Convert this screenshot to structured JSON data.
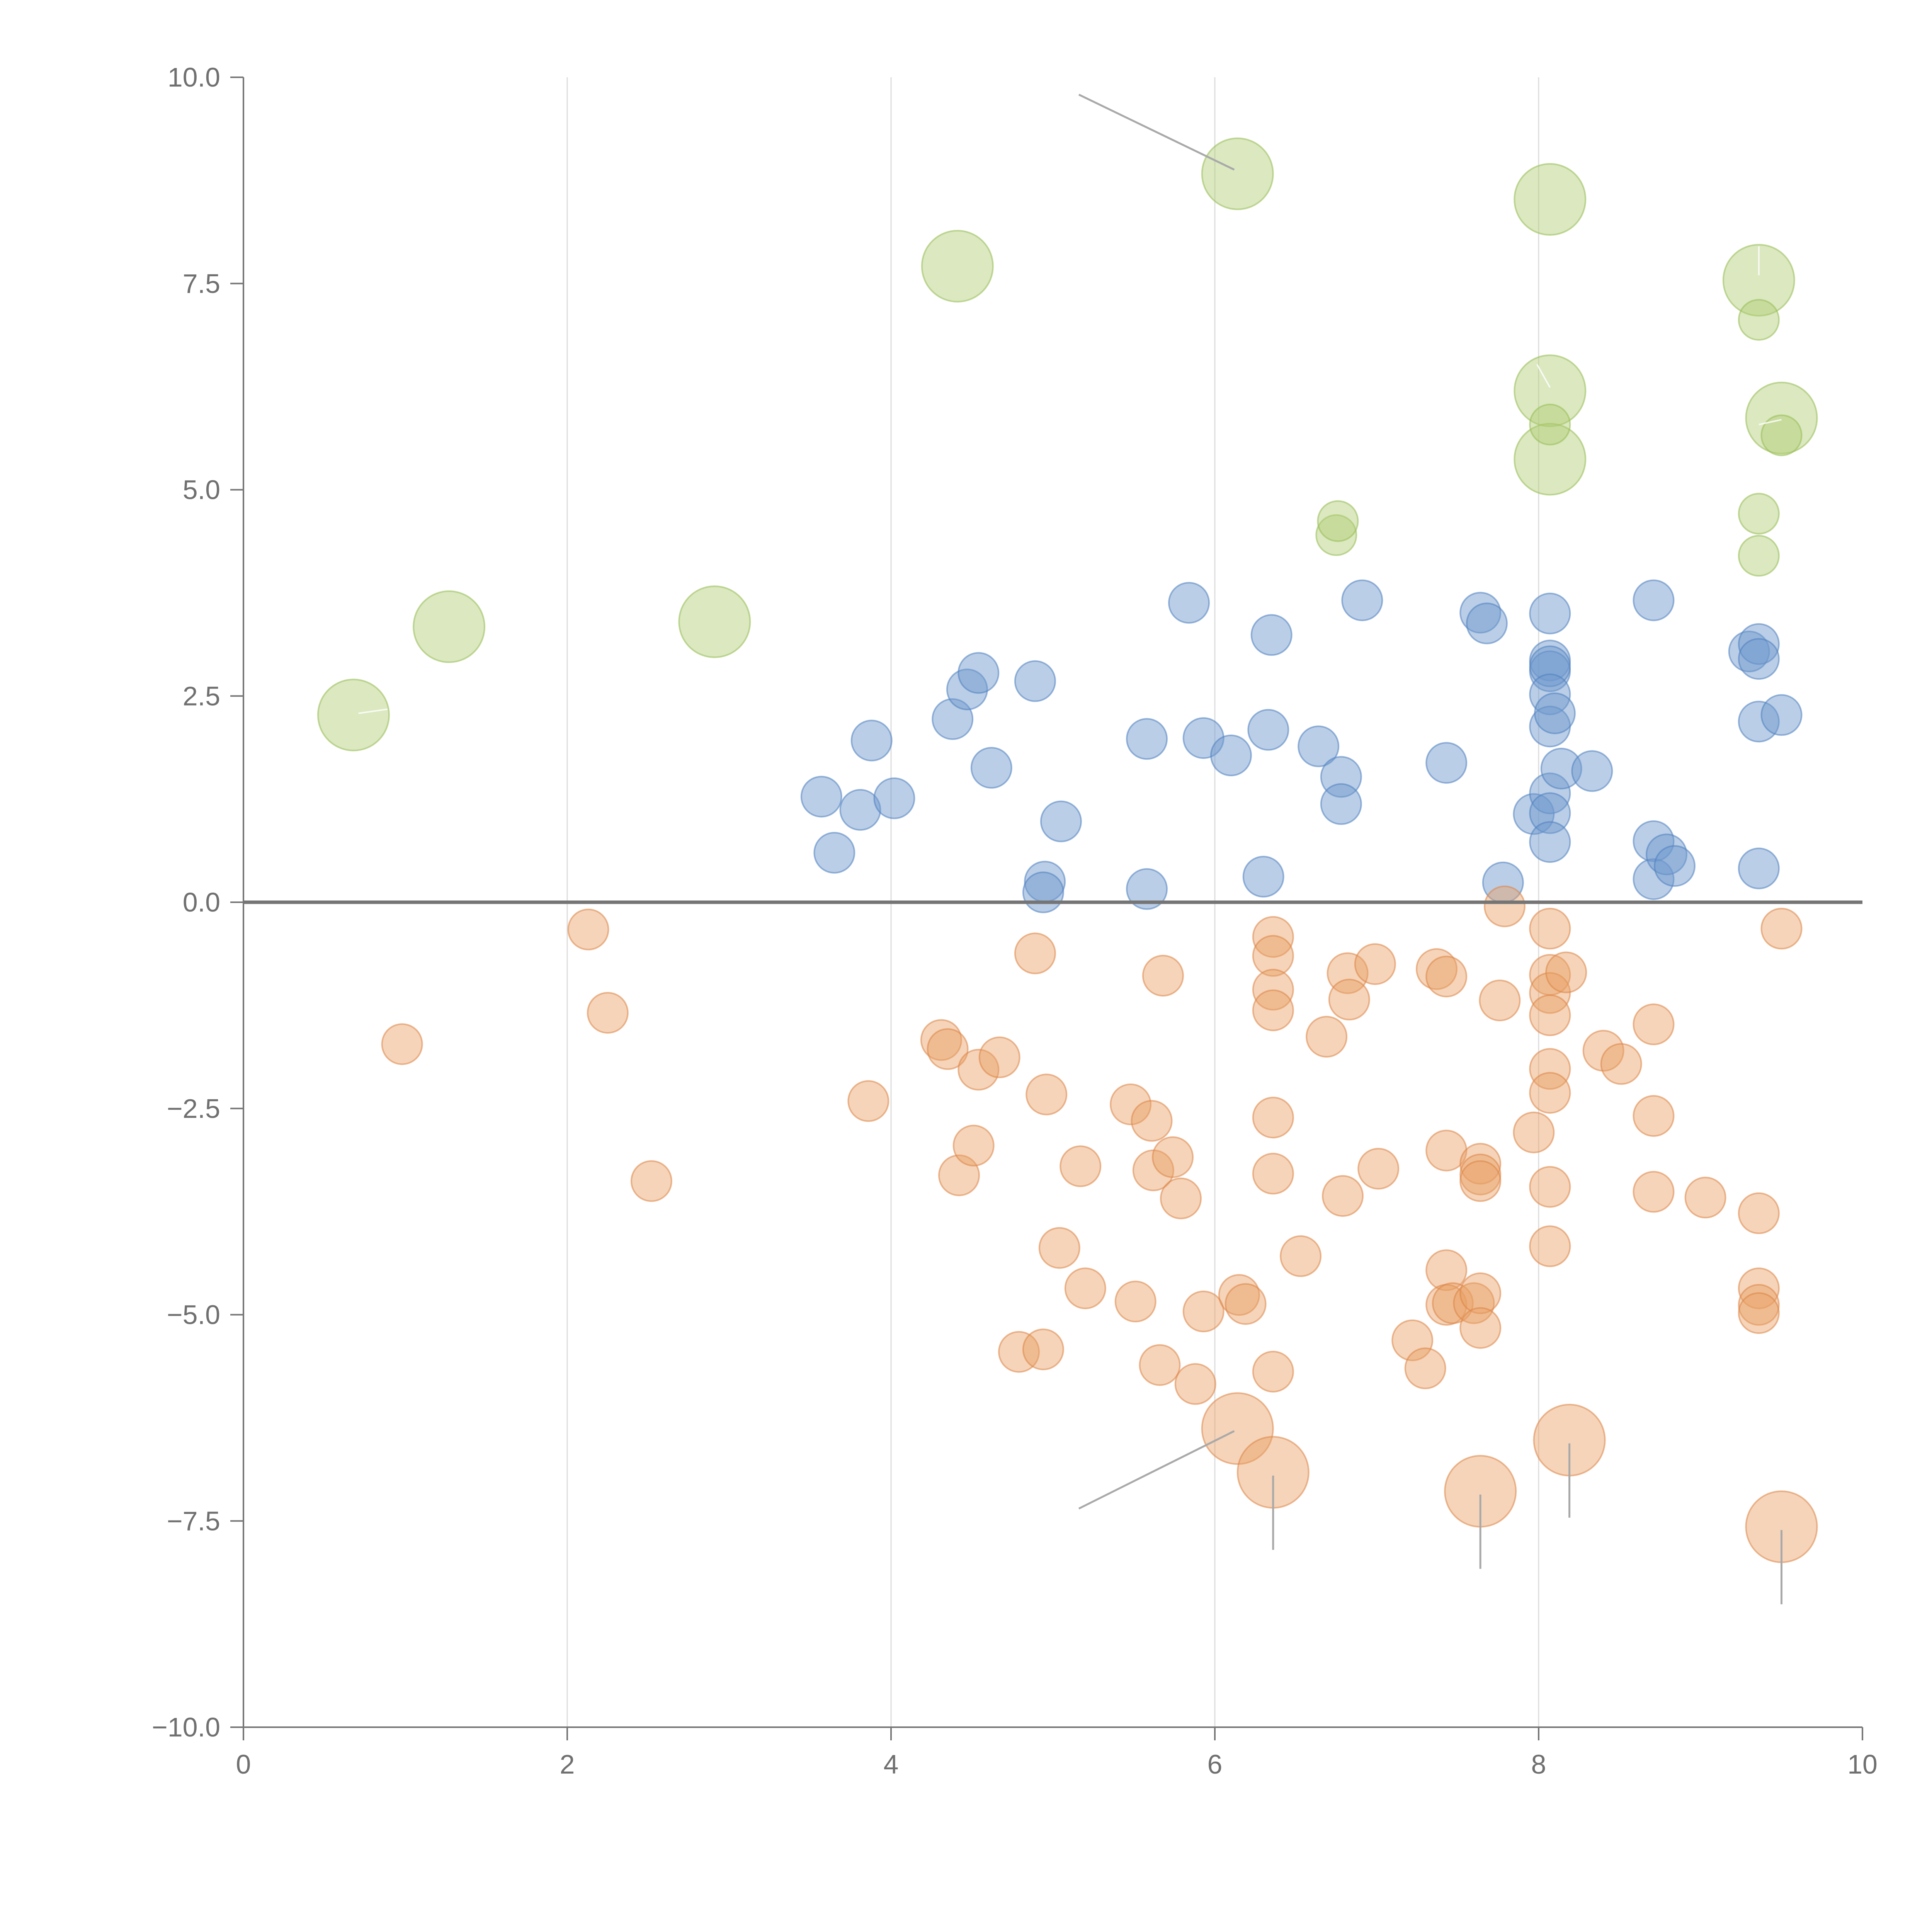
{
  "colors": {
    "positive": "#6f98cc",
    "negative": "#e9a063",
    "highlight": "#afcc73"
  },
  "chart_data": {
    "type": "scatter",
    "title": "",
    "xlabel": "",
    "ylabel": "",
    "xlim": [
      0,
      10
    ],
    "ylim": [
      -10,
      10
    ],
    "x_ticks": [
      0,
      2,
      4,
      6,
      8,
      10
    ],
    "x_tick_labels": [
      "0",
      "2",
      "4",
      "6",
      "8",
      "10"
    ],
    "y_ticks": [
      10,
      7.5,
      5,
      2.5,
      0,
      -2.5,
      -5,
      -7.5,
      -10
    ],
    "y_tick_labels": [
      "10.0",
      "7.5",
      "5.0",
      "2.5",
      "0.0",
      "−2.5",
      "−5.0",
      "−7.5",
      "−10.0"
    ],
    "vertical_grid_at": [
      2,
      4,
      6,
      8
    ],
    "zero_line_y": 0,
    "series": [
      {
        "name": "positive",
        "size": "small",
        "points": [
          [
            3.57,
            1.28
          ],
          [
            3.65,
            0.6
          ],
          [
            3.81,
            1.12
          ],
          [
            3.88,
            1.96
          ],
          [
            4.02,
            1.26
          ],
          [
            4.38,
            2.22
          ],
          [
            4.47,
            2.58
          ],
          [
            4.54,
            2.78
          ],
          [
            4.62,
            1.63
          ],
          [
            4.89,
            2.68
          ],
          [
            4.95,
            0.25
          ],
          [
            4.94,
            0.12
          ],
          [
            5.05,
            0.98
          ],
          [
            5.58,
            1.98
          ],
          [
            5.58,
            0.16
          ],
          [
            5.84,
            3.63
          ],
          [
            5.93,
            1.99
          ],
          [
            6.1,
            1.78
          ],
          [
            6.3,
            0.31
          ],
          [
            6.33,
            2.09
          ],
          [
            6.35,
            3.24
          ],
          [
            6.64,
            1.89
          ],
          [
            6.78,
            1.52
          ],
          [
            6.78,
            1.19
          ],
          [
            6.91,
            3.66
          ],
          [
            7.43,
            1.69
          ],
          [
            7.64,
            3.51
          ],
          [
            7.68,
            3.38
          ],
          [
            7.78,
            0.24
          ],
          [
            7.97,
            1.07
          ],
          [
            8.07,
            3.5
          ],
          [
            8.07,
            2.93
          ],
          [
            8.07,
            2.8
          ],
          [
            8.07,
            2.86
          ],
          [
            8.07,
            2.52
          ],
          [
            8.07,
            2.13
          ],
          [
            8.1,
            2.29
          ],
          [
            8.07,
            1.32
          ],
          [
            8.07,
            1.08
          ],
          [
            8.07,
            0.73
          ],
          [
            8.14,
            1.62
          ],
          [
            8.33,
            1.59
          ],
          [
            8.71,
            3.66
          ],
          [
            8.71,
            0.74
          ],
          [
            8.71,
            0.28
          ],
          [
            8.79,
            0.58
          ],
          [
            8.84,
            0.44
          ],
          [
            9.3,
            3.04
          ],
          [
            9.36,
            3.13
          ],
          [
            9.36,
            2.95
          ],
          [
            9.36,
            2.19
          ],
          [
            9.5,
            2.27
          ],
          [
            9.36,
            0.41
          ]
        ]
      },
      {
        "name": "negative",
        "size": "small",
        "points": [
          [
            0.98,
            -1.72
          ],
          [
            2.13,
            -0.33
          ],
          [
            2.25,
            -1.34
          ],
          [
            2.52,
            -3.38
          ],
          [
            3.86,
            -2.41
          ],
          [
            4.31,
            -1.67
          ],
          [
            4.35,
            -1.78
          ],
          [
            4.42,
            -3.31
          ],
          [
            4.51,
            -2.95
          ],
          [
            4.54,
            -2.03
          ],
          [
            4.67,
            -1.88
          ],
          [
            4.79,
            -5.45
          ],
          [
            4.89,
            -0.62
          ],
          [
            4.94,
            -5.42
          ],
          [
            4.96,
            -2.33
          ],
          [
            5.04,
            -4.19
          ],
          [
            5.17,
            -3.2
          ],
          [
            5.2,
            -4.68
          ],
          [
            5.48,
            -2.45
          ],
          [
            5.51,
            -4.84
          ],
          [
            5.61,
            -2.65
          ],
          [
            5.62,
            -3.25
          ],
          [
            5.66,
            -5.61
          ],
          [
            5.68,
            -0.89
          ],
          [
            5.74,
            -3.09
          ],
          [
            5.79,
            -3.59
          ],
          [
            5.88,
            -5.84
          ],
          [
            5.93,
            -4.96
          ],
          [
            6.15,
            -4.76
          ],
          [
            6.19,
            -4.87
          ],
          [
            6.36,
            -0.42
          ],
          [
            6.36,
            -0.65
          ],
          [
            6.36,
            -1.06
          ],
          [
            6.36,
            -1.31
          ],
          [
            6.36,
            -2.61
          ],
          [
            6.36,
            -3.29
          ],
          [
            6.36,
            -5.69
          ],
          [
            6.53,
            -4.29
          ],
          [
            6.69,
            -1.63
          ],
          [
            6.79,
            -3.56
          ],
          [
            6.82,
            -0.86
          ],
          [
            6.83,
            -1.18
          ],
          [
            6.99,
            -0.75
          ],
          [
            7.01,
            -3.23
          ],
          [
            7.22,
            -5.31
          ],
          [
            7.3,
            -5.65
          ],
          [
            7.37,
            -0.81
          ],
          [
            7.43,
            -0.9
          ],
          [
            7.43,
            -3.01
          ],
          [
            7.43,
            -4.46
          ],
          [
            7.43,
            -4.88
          ],
          [
            7.47,
            -4.86
          ],
          [
            7.6,
            -4.86
          ],
          [
            7.64,
            -3.17
          ],
          [
            7.64,
            -3.3
          ],
          [
            7.64,
            -3.38
          ],
          [
            7.64,
            -4.74
          ],
          [
            7.64,
            -5.16
          ],
          [
            7.76,
            -1.19
          ],
          [
            7.79,
            -0.05
          ],
          [
            7.97,
            -2.79
          ],
          [
            8.07,
            -0.32
          ],
          [
            8.07,
            -0.88
          ],
          [
            8.07,
            -1.1
          ],
          [
            8.07,
            -1.37
          ],
          [
            8.07,
            -2.02
          ],
          [
            8.07,
            -2.31
          ],
          [
            8.07,
            -3.45
          ],
          [
            8.07,
            -4.17
          ],
          [
            8.17,
            -0.85
          ],
          [
            8.4,
            -1.8
          ],
          [
            8.51,
            -1.96
          ],
          [
            8.71,
            -1.48
          ],
          [
            8.71,
            -2.59
          ],
          [
            8.71,
            -3.51
          ],
          [
            9.03,
            -3.58
          ],
          [
            9.36,
            -3.77
          ],
          [
            9.36,
            -4.68
          ],
          [
            9.36,
            -4.88
          ],
          [
            9.36,
            -4.98
          ],
          [
            9.5,
            -0.32
          ]
        ]
      },
      {
        "name": "negative",
        "size": "large",
        "points": [
          [
            6.14,
            -6.38
          ],
          [
            6.36,
            -6.91
          ],
          [
            7.64,
            -7.14
          ],
          [
            8.19,
            -6.52
          ],
          [
            9.5,
            -7.57
          ]
        ]
      },
      {
        "name": "highlight",
        "size": "large",
        "points": [
          [
            0.68,
            2.27
          ],
          [
            1.27,
            3.34
          ],
          [
            2.91,
            3.4
          ],
          [
            4.41,
            7.71
          ],
          [
            6.14,
            8.83
          ],
          [
            8.07,
            8.52
          ],
          [
            8.07,
            6.2
          ],
          [
            8.07,
            5.37
          ],
          [
            9.36,
            7.54
          ],
          [
            9.5,
            5.87
          ]
        ]
      },
      {
        "name": "highlight",
        "size": "small",
        "points": [
          [
            6.75,
            4.45
          ],
          [
            6.76,
            4.62
          ],
          [
            8.07,
            5.79
          ],
          [
            9.36,
            7.06
          ],
          [
            9.36,
            4.71
          ],
          [
            9.36,
            4.2
          ],
          [
            9.5,
            5.66
          ]
        ]
      }
    ],
    "leader_lines": [
      [
        [
          5.16,
          9.79
        ],
        [
          6.12,
          8.88
        ]
      ],
      [
        [
          5.16,
          -7.35
        ],
        [
          6.12,
          -6.41
        ]
      ],
      [
        [
          6.36,
          -6.95
        ],
        [
          6.36,
          -7.85
        ]
      ],
      [
        [
          7.64,
          -7.18
        ],
        [
          7.64,
          -8.08
        ]
      ],
      [
        [
          8.19,
          -6.56
        ],
        [
          8.19,
          -7.46
        ]
      ],
      [
        [
          9.5,
          -7.61
        ],
        [
          9.5,
          -8.51
        ]
      ]
    ],
    "inner_lines": [
      [
        [
          0.71,
          2.29
        ],
        [
          0.89,
          2.34
        ]
      ],
      [
        [
          7.99,
          6.52
        ],
        [
          8.07,
          6.24
        ]
      ],
      [
        [
          9.36,
          7.6
        ],
        [
          9.36,
          7.95
        ]
      ],
      [
        [
          9.36,
          5.79
        ],
        [
          9.5,
          5.85
        ]
      ]
    ]
  }
}
